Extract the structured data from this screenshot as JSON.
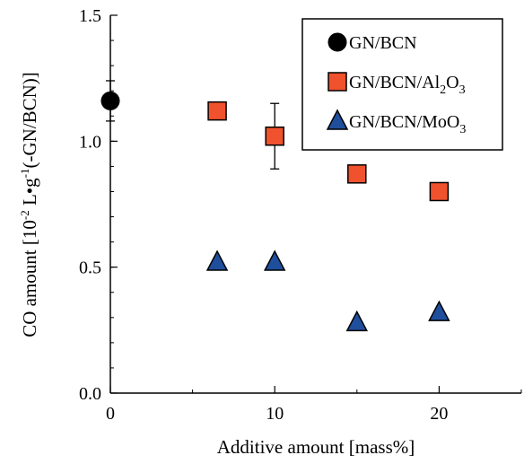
{
  "chart_data": {
    "type": "scatter",
    "xlabel": "Additive amount [mass%]",
    "ylabel": {
      "before_sup1": "CO amount [10",
      "sup1": "-2",
      "mid": " L•g",
      "sup2": "-1",
      "after": "(-GN/BCN)]"
    },
    "xlim": [
      0,
      25
    ],
    "ylim": [
      0,
      1.5
    ],
    "x_ticks": [
      0,
      10,
      20
    ],
    "y_ticks": [
      0.0,
      0.5,
      1.0,
      1.5
    ],
    "x_tick_labels": [
      "0",
      "10",
      "20"
    ],
    "y_tick_labels": [
      "0.0",
      "0.5",
      "1.0",
      "1.5"
    ],
    "grid": false,
    "legend_position": "top-right",
    "series": [
      {
        "name": "GN/BCN",
        "legend": {
          "base": "GN/BCN",
          "sub": "",
          "tail": ""
        },
        "marker": "circle",
        "color": "#000000",
        "points": [
          {
            "x": 0,
            "y": 1.16,
            "err": 0.08
          }
        ]
      },
      {
        "name": "GN/BCN/Al2O3",
        "legend": {
          "base": "GN/BCN/Al",
          "sub": "2",
          "tail": "O",
          "sub2": "3"
        },
        "marker": "square",
        "color": "#f0522d",
        "points": [
          {
            "x": 6.5,
            "y": 1.12
          },
          {
            "x": 10,
            "y": 1.02,
            "err": 0.13
          },
          {
            "x": 15,
            "y": 0.87
          },
          {
            "x": 20,
            "y": 0.8
          }
        ]
      },
      {
        "name": "GN/BCN/MoO3",
        "legend": {
          "base": "GN/BCN/MoO",
          "sub": "3",
          "tail": ""
        },
        "marker": "triangle",
        "color": "#1f4e9c",
        "points": [
          {
            "x": 6.5,
            "y": 0.52
          },
          {
            "x": 10,
            "y": 0.52
          },
          {
            "x": 15,
            "y": 0.28
          },
          {
            "x": 20,
            "y": 0.32
          }
        ]
      }
    ]
  }
}
